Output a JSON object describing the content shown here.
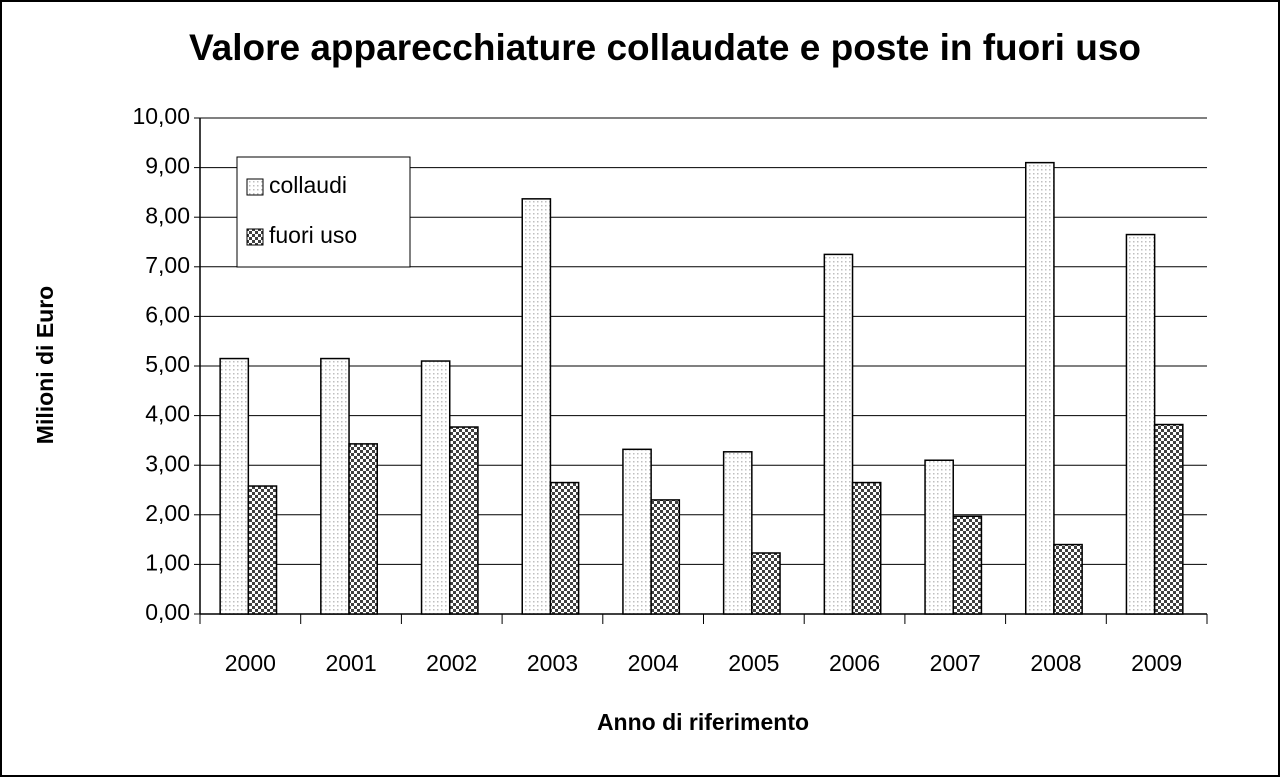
{
  "chart_data": {
    "type": "bar",
    "title": "Valore apparecchiature collaudate e poste in fuori uso",
    "xlabel": "Anno di riferimento",
    "ylabel": "Milioni di Euro",
    "categories": [
      "2000",
      "2001",
      "2002",
      "2003",
      "2004",
      "2005",
      "2006",
      "2007",
      "2008",
      "2009"
    ],
    "series": [
      {
        "name": "collaudi",
        "color": "#bfbfbf",
        "values": [
          5.15,
          5.15,
          5.1,
          8.37,
          3.32,
          3.27,
          7.25,
          3.1,
          9.1,
          7.65
        ]
      },
      {
        "name": "fuori uso",
        "color": "#404040",
        "values": [
          2.58,
          3.43,
          3.77,
          2.65,
          2.3,
          1.23,
          2.65,
          1.97,
          1.4,
          3.82
        ]
      }
    ],
    "ylim": [
      0,
      10
    ],
    "yticks": [
      {
        "value": 0,
        "label": "0,00"
      },
      {
        "value": 1,
        "label": "1,00"
      },
      {
        "value": 2,
        "label": "2,00"
      },
      {
        "value": 3,
        "label": "3,00"
      },
      {
        "value": 4,
        "label": "4,00"
      },
      {
        "value": 5,
        "label": "5,00"
      },
      {
        "value": 6,
        "label": "6,00"
      },
      {
        "value": 7,
        "label": "7,00"
      },
      {
        "value": 8,
        "label": "8,00"
      },
      {
        "value": 9,
        "label": "9,00"
      },
      {
        "value": 10,
        "label": "10,00"
      }
    ],
    "grid": true,
    "legend": "upper left"
  }
}
